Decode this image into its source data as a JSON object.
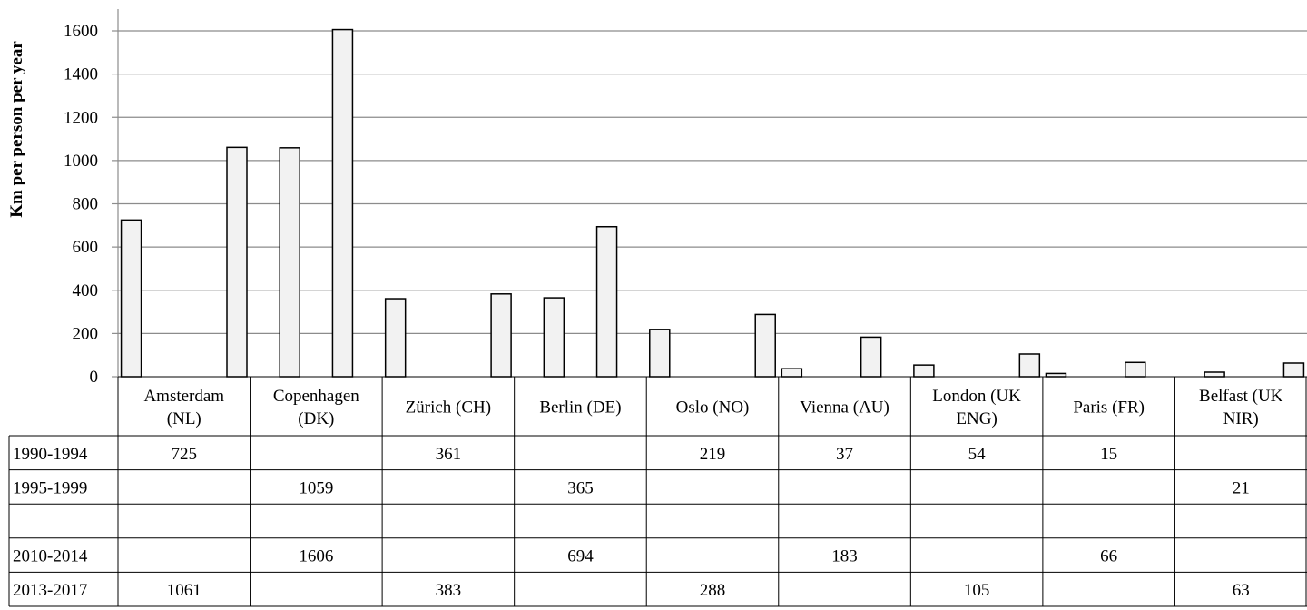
{
  "chart_data": {
    "type": "bar",
    "ylabel": "Km per person per year",
    "xlabel": "",
    "ylim": [
      0,
      1600
    ],
    "yticks": [
      0,
      200,
      400,
      600,
      800,
      1000,
      1200,
      1400,
      1600
    ],
    "grid": true,
    "categories": [
      [
        "Amsterdam",
        "(NL)"
      ],
      [
        "Copenhagen",
        "(DK)"
      ],
      [
        "Zürich (CH)"
      ],
      [
        "Berlin (DE)"
      ],
      [
        "Oslo (NO)"
      ],
      [
        "Vienna (AU)"
      ],
      [
        "London (UK",
        "ENG)"
      ],
      [
        "Paris (FR)"
      ],
      [
        "Belfast (UK",
        "NIR)"
      ]
    ],
    "series": [
      {
        "name": "1990-1994",
        "values": [
          725,
          null,
          361,
          null,
          219,
          37,
          54,
          15,
          null
        ]
      },
      {
        "name": "1995-1999",
        "values": [
          null,
          1059,
          null,
          365,
          null,
          null,
          null,
          null,
          21
        ]
      },
      {
        "name": "",
        "values": [
          null,
          null,
          null,
          null,
          null,
          null,
          null,
          null,
          null
        ]
      },
      {
        "name": "2010-2014",
        "values": [
          null,
          1606,
          null,
          694,
          null,
          183,
          null,
          66,
          null
        ]
      },
      {
        "name": "2013-2017",
        "values": [
          1061,
          null,
          383,
          null,
          288,
          null,
          105,
          null,
          63
        ]
      }
    ],
    "bar_color": "#f2f2f2"
  }
}
